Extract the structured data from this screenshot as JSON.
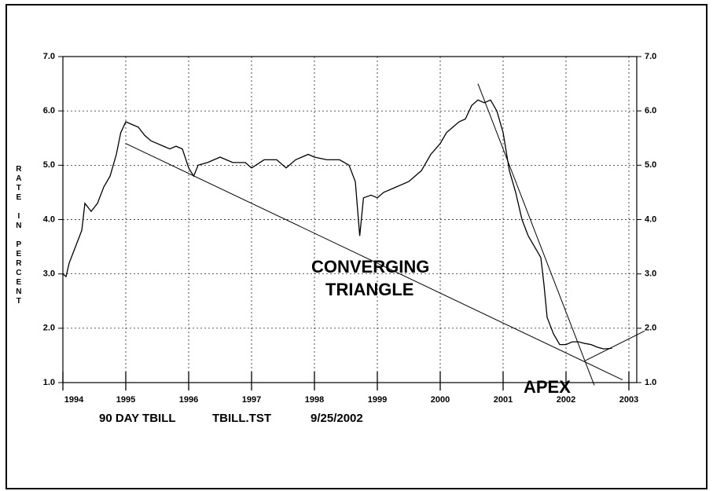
{
  "chart_data": {
    "type": "line",
    "ylabel": "RATE IN PERCENT",
    "x": [
      1994.0,
      1994.05,
      1994.1,
      1994.2,
      1994.3,
      1994.35,
      1994.45,
      1994.55,
      1994.65,
      1994.75,
      1994.85,
      1994.92,
      1995.0,
      1995.1,
      1995.2,
      1995.3,
      1995.4,
      1995.5,
      1995.6,
      1995.7,
      1995.8,
      1995.9,
      1996.0,
      1996.08,
      1996.15,
      1996.3,
      1996.5,
      1996.7,
      1996.9,
      1997.0,
      1997.2,
      1997.4,
      1997.55,
      1997.7,
      1997.9,
      1998.0,
      1998.2,
      1998.4,
      1998.55,
      1998.65,
      1998.72,
      1998.78,
      1998.9,
      1999.0,
      1999.1,
      1999.3,
      1999.5,
      1999.7,
      1999.85,
      2000.0,
      2000.1,
      2000.2,
      2000.3,
      2000.4,
      2000.5,
      2000.6,
      2000.7,
      2000.8,
      2000.9,
      2001.0,
      2001.1,
      2001.2,
      2001.3,
      2001.4,
      2001.5,
      2001.6,
      2001.65,
      2001.7,
      2001.8,
      2001.9,
      2002.0,
      2002.1,
      2002.2,
      2002.3,
      2002.4,
      2002.5,
      2002.6,
      2002.73
    ],
    "series": [
      {
        "name": "90 DAY TBILL",
        "color": "#000000",
        "values": [
          3.0,
          2.95,
          3.2,
          3.5,
          3.8,
          4.3,
          4.15,
          4.3,
          4.6,
          4.8,
          5.2,
          5.6,
          5.8,
          5.75,
          5.7,
          5.55,
          5.45,
          5.4,
          5.35,
          5.3,
          5.35,
          5.3,
          4.95,
          4.8,
          5.0,
          5.05,
          5.15,
          5.05,
          5.05,
          4.95,
          5.1,
          5.1,
          4.95,
          5.1,
          5.2,
          5.15,
          5.1,
          5.1,
          5.0,
          4.7,
          3.7,
          4.4,
          4.45,
          4.4,
          4.5,
          4.6,
          4.7,
          4.9,
          5.2,
          5.4,
          5.6,
          5.7,
          5.8,
          5.85,
          6.1,
          6.2,
          6.15,
          6.2,
          6.0,
          5.6,
          4.9,
          4.5,
          4.0,
          3.7,
          3.5,
          3.3,
          2.8,
          2.2,
          1.9,
          1.7,
          1.7,
          1.75,
          1.75,
          1.72,
          1.7,
          1.65,
          1.62,
          1.63
        ]
      }
    ],
    "trendlines": [
      {
        "x": [
          1995.0,
          2002.9
        ],
        "y": [
          5.4,
          1.05
        ]
      },
      {
        "x": [
          2000.6,
          2002.45
        ],
        "y": [
          6.5,
          0.95
        ]
      },
      {
        "x": [
          2002.3,
          2003.25
        ],
        "y": [
          1.4,
          1.95
        ]
      }
    ],
    "xlim": [
      1994.0,
      2003.125
    ],
    "xticks": [
      1994,
      1995,
      1996,
      1997,
      1998,
      1999,
      2000,
      2001,
      2002,
      2003
    ],
    "ylim": [
      1.0,
      7.0
    ],
    "yticks": [
      {
        "value": 1,
        "label": "1.0"
      },
      {
        "value": 2,
        "label": "2.0"
      },
      {
        "value": 3,
        "label": "3.0"
      },
      {
        "value": 4,
        "label": "4.0"
      },
      {
        "value": 5,
        "label": "5.0"
      },
      {
        "value": 6,
        "label": "6.0"
      },
      {
        "value": 7,
        "label": "7.0"
      }
    ],
    "grid": true,
    "annotations": [
      "CONVERGING",
      "TRIANGLE",
      "APEX"
    ],
    "footer": [
      "TBILL.TST",
      "9/25/2002"
    ]
  }
}
